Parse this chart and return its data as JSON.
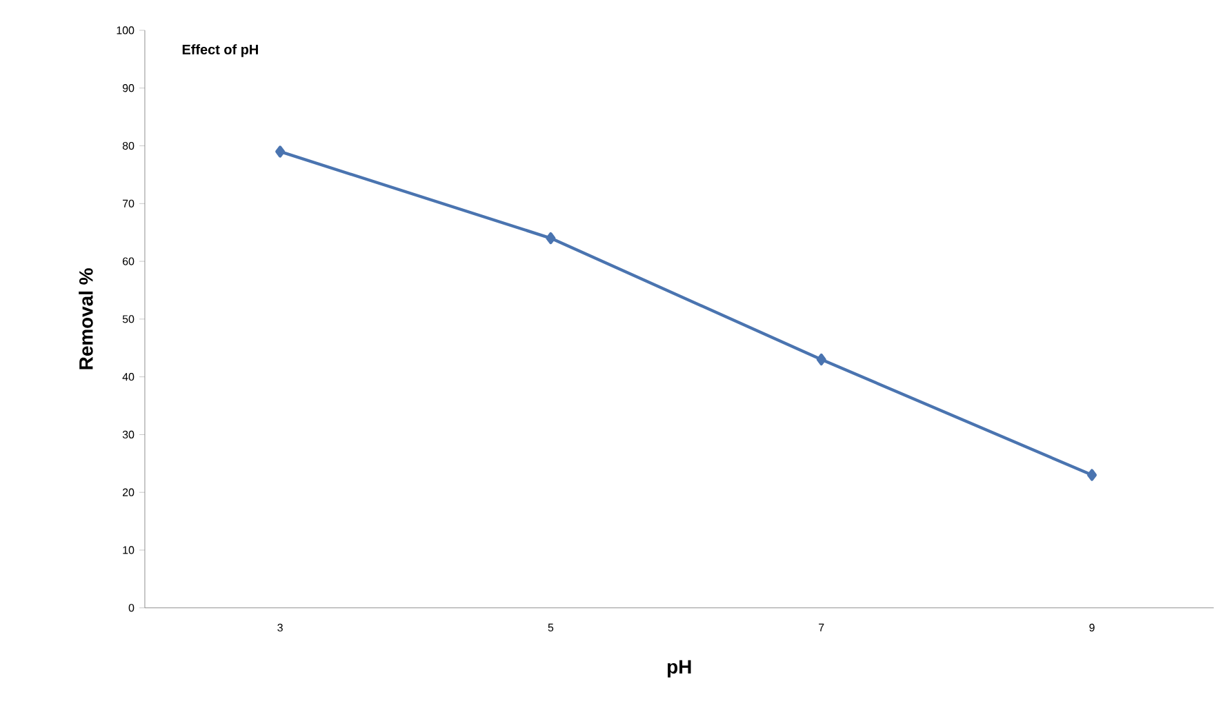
{
  "chart_data": {
    "type": "line",
    "title": "Effect of pH",
    "xlabel": "pH",
    "ylabel": "Removal %",
    "categories": [
      "3",
      "5",
      "7",
      "9"
    ],
    "series": [
      {
        "color": "#4a74b0",
        "values": [
          79,
          64,
          43,
          23
        ]
      }
    ],
    "ylim": [
      0,
      100
    ],
    "yticks": [
      0,
      10,
      20,
      30,
      40,
      50,
      60,
      70,
      80,
      90,
      100
    ],
    "grid": false,
    "marker": "diamond",
    "line_style": "solid"
  }
}
